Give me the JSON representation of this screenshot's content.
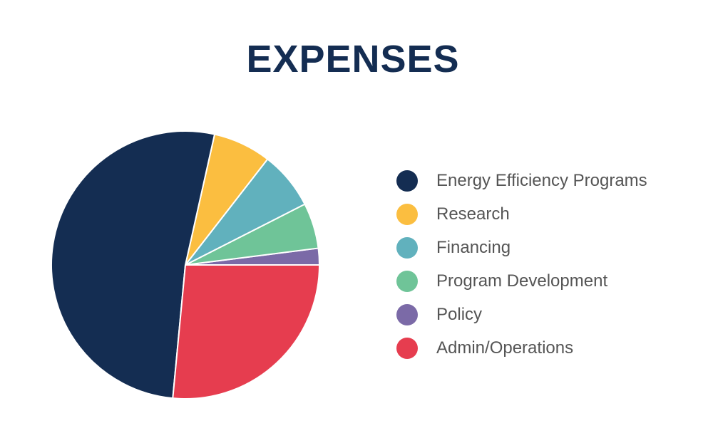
{
  "chart_data": {
    "type": "pie",
    "title": "EXPENSES",
    "slices": [
      {
        "label": "Energy Efficiency Programs",
        "value": 52.0,
        "color": "#142d52"
      },
      {
        "label": "Research",
        "value": 7.0,
        "color": "#fbbe40"
      },
      {
        "label": "Financing",
        "value": 7.0,
        "color": "#61b1bd"
      },
      {
        "label": "Program Development",
        "value": 5.5,
        "color": "#6fc498"
      },
      {
        "label": "Policy",
        "value": 2.0,
        "color": "#7b6aa7"
      },
      {
        "label": "Admin/Operations",
        "value": 26.5,
        "color": "#e63d4f"
      }
    ],
    "legend_position": "right",
    "slice_border_color": "#ffffff"
  }
}
